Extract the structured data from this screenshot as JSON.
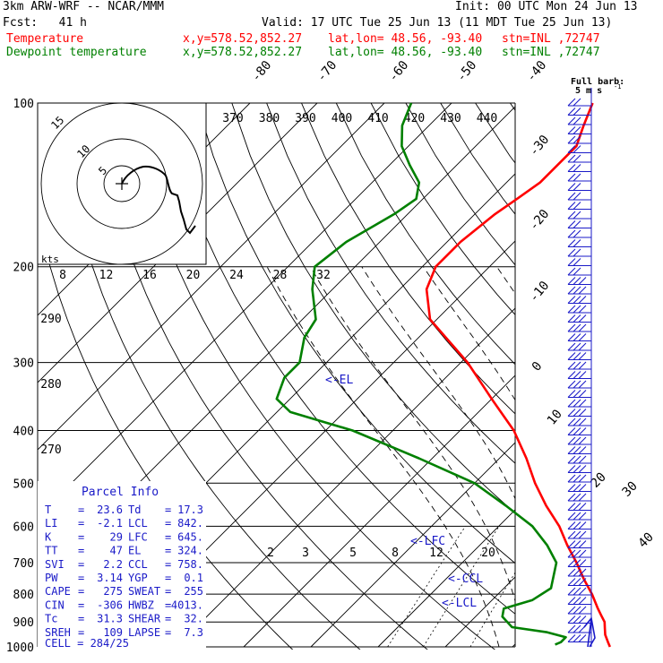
{
  "header": {
    "model": "3km ARW-WRF -- NCAR/MMM",
    "init": "Init: 00 UTC Mon 24 Jun 13",
    "fcst": "Fcst:   41 h",
    "valid": "Valid: 17 UTC Tue 25 Jun 13 (11 MDT Tue 25 Jun 13)",
    "temp_label": "Temperature",
    "dew_label": "Dewpoint temperature",
    "xy": "x,y=578.52,852.27",
    "latlon": "lat,lon= 48.56, -93.40",
    "stn": "stn=INL ,72747"
  },
  "colors": {
    "temperature": "#ff0000",
    "dewpoint": "#008000",
    "text": "#1a1ac8",
    "barb": "#1a1ac8"
  },
  "parcel": {
    "title": "Parcel Info",
    "rows": [
      [
        "T",
        "23.6",
        "Td",
        "17.3"
      ],
      [
        "LI",
        "-2.1",
        "LCL",
        "842."
      ],
      [
        "K",
        "29",
        "LFC",
        "645."
      ],
      [
        "TT",
        "47",
        "EL",
        "324."
      ],
      [
        "SVI",
        "2.2",
        "CCL",
        "758."
      ],
      [
        "PW",
        "3.14",
        "YGP",
        "0.1"
      ],
      [
        "CAPE",
        "275",
        "SWEAT",
        "255"
      ],
      [
        "CIN",
        "-306",
        "HWBZ",
        "4013."
      ],
      [
        "Tc",
        "31.3",
        "SHEAR",
        "32."
      ],
      [
        "SREH",
        "109",
        "LAPSE",
        "7.3"
      ]
    ],
    "cell": "CELL = 284/25"
  },
  "fullbarb": {
    "line1": "Full barb:",
    "line2": "5 m s",
    "exp": "-1"
  },
  "hodo": {
    "unit": "kts",
    "rings": [
      "5",
      "10",
      "15"
    ]
  },
  "chart_data": {
    "type": "line",
    "xlabel": "",
    "ylabel": "",
    "pressure_ticks": [
      100,
      200,
      300,
      400,
      500,
      600,
      700,
      800,
      900,
      1000
    ],
    "pressure_labels": [
      "100",
      "200",
      "300",
      "400",
      "500",
      "600",
      "700",
      "800",
      "900",
      "1000"
    ],
    "isotherm_labels": [
      "-80",
      "-70",
      "-60",
      "-50",
      "-40",
      "-30",
      "-20",
      "-10",
      "0",
      "10",
      "20",
      "30",
      "40"
    ],
    "theta_labels": [
      "370",
      "380",
      "390",
      "400",
      "410",
      "420",
      "430",
      "440"
    ],
    "theta_left_labels": [
      "290",
      "280",
      "270"
    ],
    "mixing_labels": [
      "8",
      "12",
      "16",
      "20",
      "24",
      "28",
      "32"
    ],
    "mixing_low_labels": [
      "2",
      "3",
      "5",
      "8",
      "12",
      "20"
    ],
    "level_labels": [
      "<-EL",
      "<-LFC",
      "<-CCL",
      "<-LCL"
    ],
    "series": [
      {
        "name": "Temperature",
        "points": [
          [
            1000,
            24.5
          ],
          [
            980,
            23.5
          ],
          [
            950,
            22
          ],
          [
            925,
            21
          ],
          [
            900,
            20
          ],
          [
            875,
            18.5
          ],
          [
            850,
            17
          ],
          [
            800,
            14
          ],
          [
            750,
            10.5
          ],
          [
            700,
            7
          ],
          [
            650,
            3
          ],
          [
            600,
            -1
          ],
          [
            550,
            -6
          ],
          [
            500,
            -11
          ],
          [
            450,
            -16
          ],
          [
            400,
            -22
          ],
          [
            350,
            -30
          ],
          [
            300,
            -39
          ],
          [
            250,
            -51
          ],
          [
            220,
            -56
          ],
          [
            200,
            -58
          ],
          [
            180,
            -58
          ],
          [
            160,
            -57
          ],
          [
            150,
            -56
          ],
          [
            140,
            -55
          ],
          [
            130,
            -55
          ],
          [
            120,
            -55
          ],
          [
            110,
            -57
          ],
          [
            100,
            -59
          ]
        ]
      },
      {
        "name": "Dewpoint temperature",
        "points": [
          [
            990,
            16
          ],
          [
            980,
            16.5
          ],
          [
            960,
            16.5
          ],
          [
            940,
            13
          ],
          [
            920,
            7
          ],
          [
            880,
            4
          ],
          [
            850,
            3
          ],
          [
            820,
            6
          ],
          [
            780,
            7
          ],
          [
            700,
            4
          ],
          [
            650,
            0
          ],
          [
            600,
            -5
          ],
          [
            550,
            -12
          ],
          [
            500,
            -20
          ],
          [
            450,
            -32
          ],
          [
            400,
            -46
          ],
          [
            370,
            -58
          ],
          [
            350,
            -62
          ],
          [
            320,
            -64
          ],
          [
            300,
            -64
          ],
          [
            270,
            -67
          ],
          [
            250,
            -68
          ],
          [
            220,
            -73
          ],
          [
            200,
            -76
          ],
          [
            180,
            -75
          ],
          [
            160,
            -72
          ],
          [
            150,
            -71
          ],
          [
            140,
            -73
          ],
          [
            130,
            -77
          ],
          [
            120,
            -81
          ],
          [
            110,
            -84
          ],
          [
            100,
            -86
          ]
        ]
      }
    ]
  }
}
